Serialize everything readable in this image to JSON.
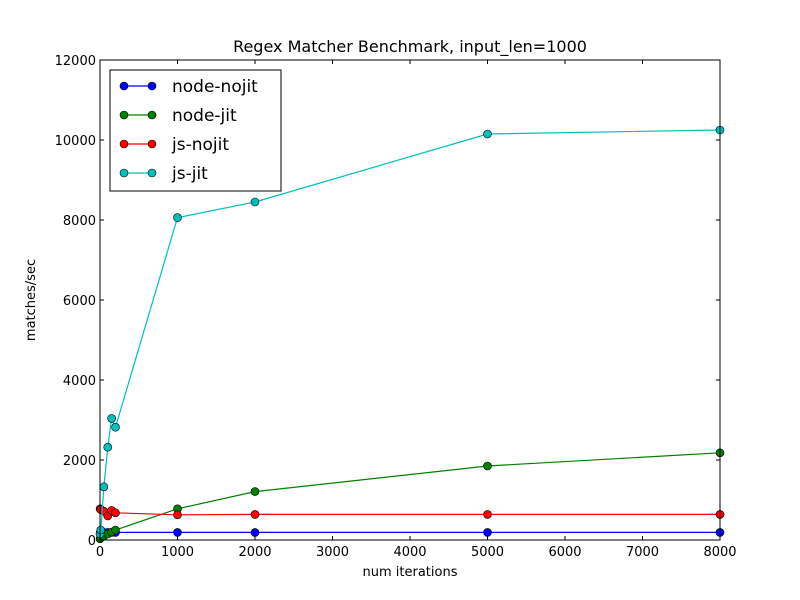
{
  "chart_data": {
    "type": "line",
    "title": "Regex Matcher Benchmark, input_len=1000",
    "xlabel": "num iterations",
    "ylabel": "matches/sec",
    "xlim": [
      0,
      8000
    ],
    "ylim": [
      0,
      12000
    ],
    "xticks": [
      0,
      1000,
      2000,
      3000,
      4000,
      5000,
      6000,
      7000,
      8000
    ],
    "yticks": [
      0,
      2000,
      4000,
      6000,
      8000,
      10000,
      12000
    ],
    "grid": false,
    "legend_position": "top-left",
    "series": [
      {
        "name": "node-nojit",
        "color": "#0000ff",
        "x": [
          1,
          10,
          50,
          100,
          150,
          200,
          1000,
          2000,
          5000,
          8000
        ],
        "y": [
          180,
          185,
          190,
          190,
          190,
          190,
          190,
          190,
          190,
          190
        ]
      },
      {
        "name": "node-jit",
        "color": "#008000",
        "x": [
          1,
          10,
          50,
          100,
          150,
          200,
          1000,
          2000,
          5000,
          8000
        ],
        "y": [
          30,
          60,
          100,
          150,
          200,
          250,
          780,
          1210,
          1850,
          2180
        ]
      },
      {
        "name": "js-nojit",
        "color": "#ff0000",
        "x": [
          1,
          10,
          50,
          100,
          150,
          200,
          1000,
          2000,
          5000,
          8000
        ],
        "y": [
          780,
          760,
          720,
          600,
          740,
          680,
          630,
          640,
          640,
          640
        ]
      },
      {
        "name": "js-jit",
        "color": "#00bfbf",
        "x": [
          1,
          10,
          50,
          100,
          150,
          200,
          1000,
          2000,
          5000,
          8000
        ],
        "y": [
          150,
          250,
          1330,
          2320,
          3040,
          2820,
          8060,
          8450,
          10150,
          10250
        ]
      }
    ]
  }
}
